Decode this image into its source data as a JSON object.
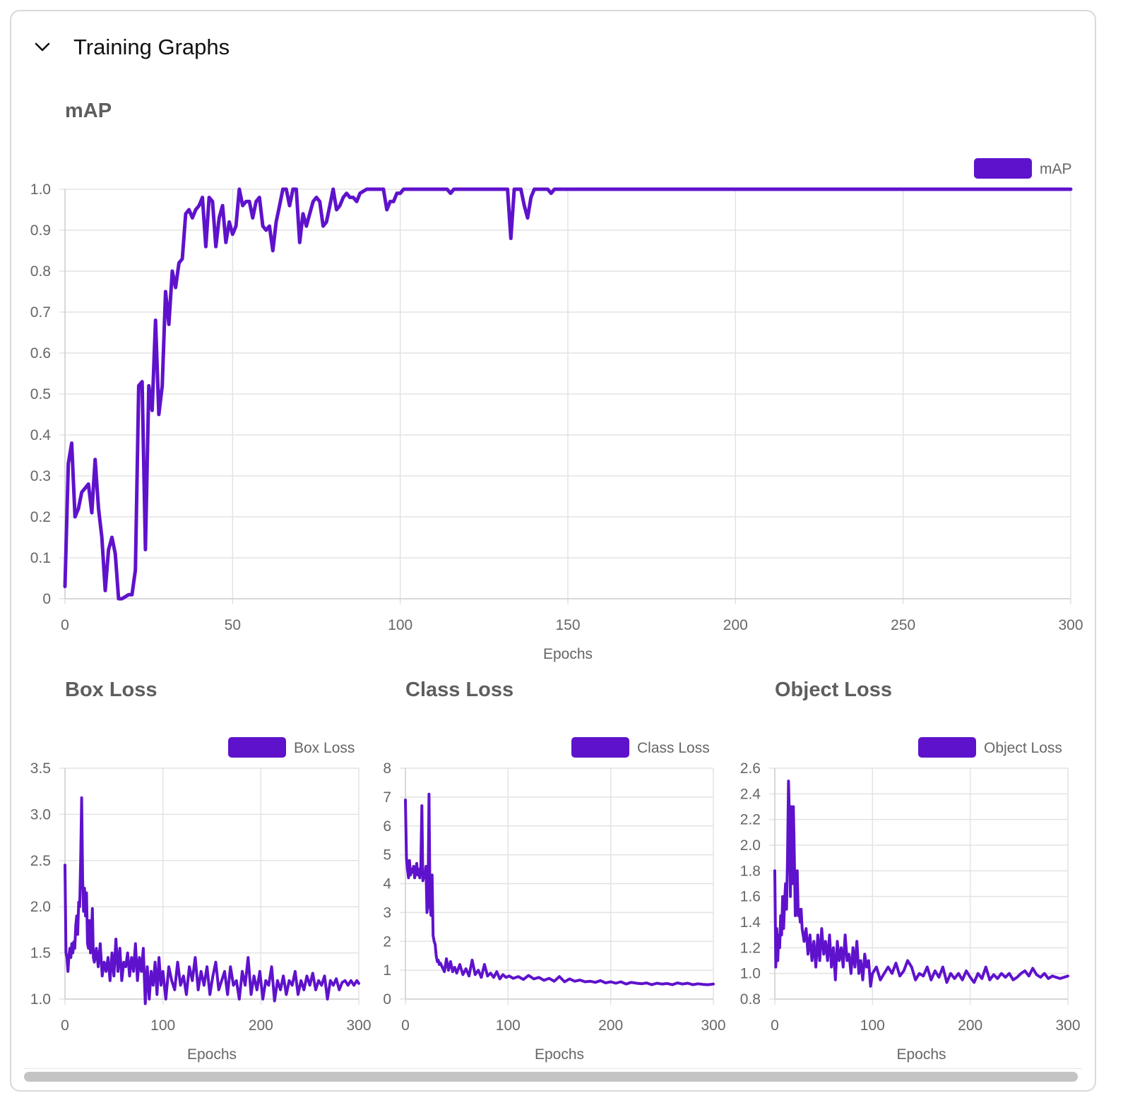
{
  "section": {
    "title": "Training Graphs",
    "toggle_icon": "chevron-down-icon"
  },
  "colors": {
    "series": "#5f12cc",
    "grid": "#e3e3e3",
    "axis_text": "#666666",
    "title_text": "#5e5e5e"
  },
  "chart_data": [
    {
      "id": "map",
      "type": "line",
      "title": "mAP",
      "xlabel": "Epochs",
      "ylabel": "",
      "xlim": [
        0,
        300
      ],
      "ylim": [
        0,
        1.0
      ],
      "xticks": [
        0,
        50,
        100,
        150,
        200,
        250,
        300
      ],
      "yticks": [
        0,
        0.1,
        0.2,
        0.3,
        0.4,
        0.5,
        0.6,
        0.7,
        0.8,
        0.9,
        1.0
      ],
      "ytick_labels": [
        "0",
        "0.1",
        "0.2",
        "0.3",
        "0.4",
        "0.5",
        "0.6",
        "0.7",
        "0.8",
        "0.9",
        "1.0"
      ],
      "legend_position": "top-right",
      "grid": true,
      "series": [
        {
          "name": "mAP",
          "x": [
            0,
            1,
            2,
            3,
            4,
            5,
            6,
            7,
            8,
            9,
            10,
            11,
            12,
            13,
            14,
            15,
            16,
            17,
            18,
            19,
            20,
            21,
            22,
            23,
            24,
            25,
            26,
            27,
            28,
            29,
            30,
            31,
            32,
            33,
            34,
            35,
            36,
            37,
            38,
            39,
            40,
            41,
            42,
            43,
            44,
            45,
            46,
            47,
            48,
            49,
            50,
            51,
            52,
            53,
            54,
            55,
            56,
            57,
            58,
            59,
            60,
            61,
            62,
            63,
            64,
            65,
            66,
            67,
            68,
            69,
            70,
            71,
            72,
            73,
            74,
            75,
            76,
            77,
            78,
            79,
            80,
            81,
            82,
            83,
            84,
            85,
            86,
            87,
            88,
            90,
            92,
            95,
            96,
            97,
            98,
            99,
            100,
            101,
            102,
            105,
            110,
            114,
            115,
            116,
            120,
            130,
            132,
            133,
            134,
            136,
            137,
            138,
            139,
            140,
            141,
            142,
            143,
            144,
            145,
            146,
            150,
            200,
            250,
            300
          ],
          "y": [
            0.03,
            0.33,
            0.38,
            0.2,
            0.22,
            0.26,
            0.27,
            0.28,
            0.21,
            0.34,
            0.22,
            0.15,
            0.02,
            0.12,
            0.15,
            0.11,
            0.0,
            0.0,
            0.005,
            0.01,
            0.01,
            0.07,
            0.52,
            0.53,
            0.12,
            0.52,
            0.46,
            0.68,
            0.45,
            0.52,
            0.75,
            0.67,
            0.8,
            0.76,
            0.82,
            0.83,
            0.94,
            0.95,
            0.93,
            0.95,
            0.96,
            0.98,
            0.86,
            0.98,
            0.97,
            0.86,
            0.93,
            0.96,
            0.87,
            0.92,
            0.89,
            0.91,
            1.0,
            0.96,
            0.97,
            0.97,
            0.93,
            0.97,
            0.98,
            0.91,
            0.9,
            0.91,
            0.85,
            0.92,
            0.96,
            1.0,
            1.0,
            0.96,
            1.0,
            1.0,
            0.87,
            0.94,
            0.91,
            0.94,
            0.97,
            0.98,
            0.97,
            0.91,
            0.92,
            0.96,
            1.0,
            0.95,
            0.96,
            0.98,
            0.99,
            0.98,
            0.98,
            0.97,
            0.99,
            1.0,
            1.0,
            1.0,
            0.95,
            0.97,
            0.97,
            0.99,
            0.99,
            1.0,
            1.0,
            1.0,
            1.0,
            1.0,
            0.99,
            1.0,
            1.0,
            1.0,
            1.0,
            0.88,
            1.0,
            1.0,
            0.96,
            0.93,
            0.98,
            1.0,
            1.0,
            1.0,
            1.0,
            1.0,
            0.99,
            1.0,
            1.0,
            1.0,
            1.0,
            1.0
          ]
        }
      ]
    },
    {
      "id": "box",
      "type": "line",
      "title": "Box Loss",
      "xlabel": "Epochs",
      "ylabel": "",
      "xlim": [
        0,
        300
      ],
      "ylim": [
        1.0,
        3.5
      ],
      "xticks": [
        0,
        100,
        200,
        300
      ],
      "yticks": [
        1.0,
        1.5,
        2.0,
        2.5,
        3.0,
        3.5
      ],
      "ytick_labels": [
        "1.0",
        "1.5",
        "2.0",
        "2.5",
        "3.0",
        "3.5"
      ],
      "legend_position": "top-right",
      "grid": true,
      "series": [
        {
          "name": "Box Loss",
          "x": [
            0,
            1,
            2,
            3,
            4,
            5,
            6,
            7,
            8,
            9,
            10,
            11,
            12,
            13,
            14,
            15,
            16,
            17,
            18,
            19,
            20,
            21,
            22,
            23,
            24,
            25,
            26,
            27,
            28,
            29,
            30,
            32,
            34,
            36,
            38,
            40,
            42,
            44,
            46,
            48,
            50,
            52,
            54,
            56,
            58,
            60,
            62,
            64,
            66,
            68,
            70,
            72,
            74,
            76,
            78,
            80,
            82,
            84,
            86,
            88,
            90,
            92,
            94,
            96,
            98,
            100,
            103,
            106,
            109,
            112,
            115,
            118,
            121,
            124,
            127,
            130,
            133,
            136,
            139,
            142,
            145,
            148,
            151,
            154,
            157,
            160,
            163,
            166,
            169,
            172,
            175,
            178,
            181,
            184,
            187,
            190,
            193,
            196,
            199,
            202,
            205,
            208,
            211,
            214,
            217,
            220,
            223,
            226,
            229,
            232,
            235,
            238,
            241,
            244,
            247,
            250,
            253,
            256,
            259,
            262,
            265,
            268,
            271,
            274,
            277,
            280,
            283,
            286,
            289,
            292,
            295,
            298,
            300
          ],
          "y": [
            2.45,
            1.5,
            1.45,
            1.3,
            1.45,
            1.55,
            1.45,
            1.6,
            1.5,
            1.62,
            1.55,
            1.8,
            1.9,
            1.7,
            2.05,
            2.0,
            2.5,
            3.18,
            2.3,
            1.95,
            2.2,
            1.9,
            2.15,
            1.6,
            1.55,
            1.85,
            1.5,
            1.7,
            1.98,
            1.45,
            1.4,
            1.55,
            1.35,
            1.6,
            1.25,
            1.4,
            1.3,
            1.45,
            1.2,
            1.5,
            1.25,
            1.65,
            1.3,
            1.55,
            1.2,
            1.4,
            1.35,
            1.5,
            1.25,
            1.45,
            1.3,
            1.6,
            1.2,
            1.45,
            1.3,
            1.55,
            0.95,
            1.35,
            1.0,
            1.3,
            1.15,
            1.4,
            1.05,
            1.45,
            1.15,
            1.3,
            1.0,
            1.35,
            1.2,
            1.1,
            1.4,
            1.15,
            1.25,
            1.05,
            1.35,
            1.2,
            1.45,
            1.1,
            1.3,
            1.15,
            1.35,
            1.05,
            1.25,
            1.4,
            1.1,
            1.2,
            1.3,
            1.05,
            1.35,
            1.15,
            1.2,
            1.0,
            1.3,
            1.15,
            1.45,
            1.05,
            1.25,
            1.1,
            1.3,
            1.0,
            1.2,
            1.15,
            1.35,
            0.98,
            1.2,
            1.1,
            1.25,
            1.05,
            1.2,
            1.15,
            1.3,
            1.05,
            1.2,
            1.1,
            1.25,
            1.15,
            1.28,
            1.1,
            1.2,
            1.15,
            1.25,
            1.0,
            1.2,
            1.15,
            1.22,
            1.1,
            1.18,
            1.2,
            1.15,
            1.2,
            1.15,
            1.2,
            1.17
          ]
        }
      ]
    },
    {
      "id": "cls",
      "type": "line",
      "title": "Class Loss",
      "xlabel": "Epochs",
      "ylabel": "",
      "xlim": [
        0,
        300
      ],
      "ylim": [
        0,
        8
      ],
      "xticks": [
        0,
        100,
        200,
        300
      ],
      "yticks": [
        0,
        1,
        2,
        3,
        4,
        5,
        6,
        7,
        8
      ],
      "ytick_labels": [
        "0",
        "1",
        "2",
        "3",
        "4",
        "5",
        "6",
        "7",
        "8"
      ],
      "legend_position": "top-right",
      "grid": true,
      "series": [
        {
          "name": "Class Loss",
          "x": [
            0,
            1,
            2,
            3,
            4,
            5,
            6,
            7,
            8,
            9,
            10,
            11,
            12,
            13,
            14,
            15,
            16,
            17,
            18,
            19,
            20,
            21,
            22,
            23,
            24,
            25,
            26,
            27,
            28,
            29,
            30,
            31,
            32,
            33,
            34,
            36,
            38,
            40,
            42,
            44,
            46,
            48,
            50,
            53,
            56,
            59,
            62,
            65,
            68,
            71,
            74,
            77,
            80,
            83,
            86,
            89,
            92,
            95,
            98,
            101,
            105,
            110,
            115,
            120,
            125,
            130,
            135,
            140,
            145,
            150,
            155,
            160,
            165,
            170,
            175,
            180,
            185,
            190,
            195,
            200,
            205,
            210,
            215,
            220,
            225,
            230,
            235,
            240,
            245,
            250,
            255,
            260,
            265,
            270,
            275,
            280,
            285,
            290,
            295,
            300
          ],
          "y": [
            6.9,
            4.9,
            4.5,
            4.2,
            4.8,
            4.3,
            4.5,
            4.4,
            4.6,
            4.2,
            4.4,
            4.7,
            4.3,
            4.5,
            4.2,
            4.6,
            6.7,
            4.1,
            4.3,
            4.2,
            4.6,
            3.0,
            3.5,
            7.1,
            3.2,
            2.9,
            4.3,
            2.2,
            2.0,
            1.9,
            1.5,
            1.3,
            1.35,
            1.2,
            1.25,
            1.1,
            0.95,
            1.4,
            1.0,
            1.3,
            0.95,
            1.1,
            0.9,
            1.2,
            0.85,
            1.05,
            0.8,
            1.35,
            0.85,
            1.0,
            0.75,
            1.2,
            0.8,
            0.9,
            0.75,
            0.95,
            0.7,
            0.85,
            0.75,
            0.8,
            0.72,
            0.78,
            0.68,
            0.82,
            0.7,
            0.75,
            0.65,
            0.72,
            0.62,
            0.78,
            0.6,
            0.7,
            0.62,
            0.66,
            0.6,
            0.62,
            0.58,
            0.64,
            0.56,
            0.6,
            0.55,
            0.6,
            0.52,
            0.58,
            0.55,
            0.53,
            0.56,
            0.5,
            0.55,
            0.52,
            0.54,
            0.5,
            0.56,
            0.52,
            0.55,
            0.5,
            0.53,
            0.51,
            0.5,
            0.52
          ]
        }
      ]
    },
    {
      "id": "obj",
      "type": "line",
      "title": "Object Loss",
      "xlabel": "Epochs",
      "ylabel": "",
      "xlim": [
        0,
        300
      ],
      "ylim": [
        0.8,
        2.6
      ],
      "xticks": [
        0,
        100,
        200,
        300
      ],
      "yticks": [
        0.8,
        1.0,
        1.2,
        1.4,
        1.6,
        1.8,
        2.0,
        2.2,
        2.4,
        2.6
      ],
      "ytick_labels": [
        "0.8",
        "1.0",
        "1.2",
        "1.4",
        "1.6",
        "1.8",
        "2.0",
        "2.2",
        "2.4",
        "2.6"
      ],
      "legend_position": "top-right",
      "grid": true,
      "series": [
        {
          "name": "Object Loss",
          "x": [
            0,
            1,
            2,
            3,
            4,
            5,
            6,
            7,
            8,
            9,
            10,
            11,
            12,
            13,
            14,
            15,
            16,
            17,
            18,
            19,
            20,
            21,
            22,
            23,
            24,
            25,
            26,
            27,
            28,
            29,
            30,
            32,
            34,
            36,
            38,
            40,
            42,
            44,
            46,
            48,
            50,
            52,
            54,
            56,
            58,
            60,
            62,
            64,
            66,
            68,
            70,
            72,
            74,
            76,
            78,
            80,
            82,
            84,
            86,
            88,
            90,
            92,
            94,
            96,
            98,
            100,
            104,
            108,
            112,
            116,
            120,
            124,
            128,
            132,
            136,
            140,
            144,
            148,
            152,
            156,
            160,
            164,
            168,
            172,
            176,
            180,
            184,
            188,
            192,
            196,
            200,
            204,
            208,
            212,
            216,
            220,
            224,
            228,
            232,
            236,
            240,
            244,
            248,
            252,
            256,
            260,
            264,
            268,
            272,
            276,
            280,
            284,
            288,
            292,
            296,
            300
          ],
          "y": [
            1.8,
            1.05,
            1.35,
            1.1,
            1.3,
            1.2,
            1.45,
            1.3,
            1.6,
            1.35,
            1.55,
            1.7,
            1.5,
            1.9,
            2.5,
            2.2,
            1.6,
            2.3,
            1.7,
            2.3,
            1.9,
            1.45,
            1.5,
            1.8,
            1.45,
            1.5,
            1.4,
            1.5,
            1.35,
            1.3,
            1.25,
            1.35,
            1.15,
            1.3,
            1.1,
            1.25,
            1.05,
            1.3,
            1.1,
            1.35,
            1.15,
            1.25,
            1.1,
            1.3,
            1.05,
            1.2,
            0.95,
            1.25,
            1.1,
            1.2,
            1.05,
            1.3,
            1.1,
            1.15,
            1.0,
            1.2,
            1.05,
            1.25,
            1.0,
            1.1,
            0.95,
            1.15,
            1.05,
            1.1,
            0.9,
            1.0,
            1.05,
            0.95,
            1.0,
            1.05,
            1.0,
            1.08,
            0.98,
            1.02,
            1.1,
            1.05,
            0.95,
            1.0,
            0.98,
            1.05,
            0.95,
            1.02,
            0.97,
            1.05,
            0.93,
            1.0,
            0.96,
            1.0,
            0.95,
            1.02,
            0.97,
            0.93,
            1.0,
            0.96,
            1.05,
            0.95,
            0.99,
            0.96,
            1.0,
            0.97,
            1.0,
            0.95,
            0.97,
            1.0,
            1.02,
            0.98,
            1.04,
            0.99,
            0.97,
            1.0,
            0.96,
            0.98,
            0.97,
            0.96,
            0.97,
            0.98
          ]
        }
      ]
    }
  ]
}
